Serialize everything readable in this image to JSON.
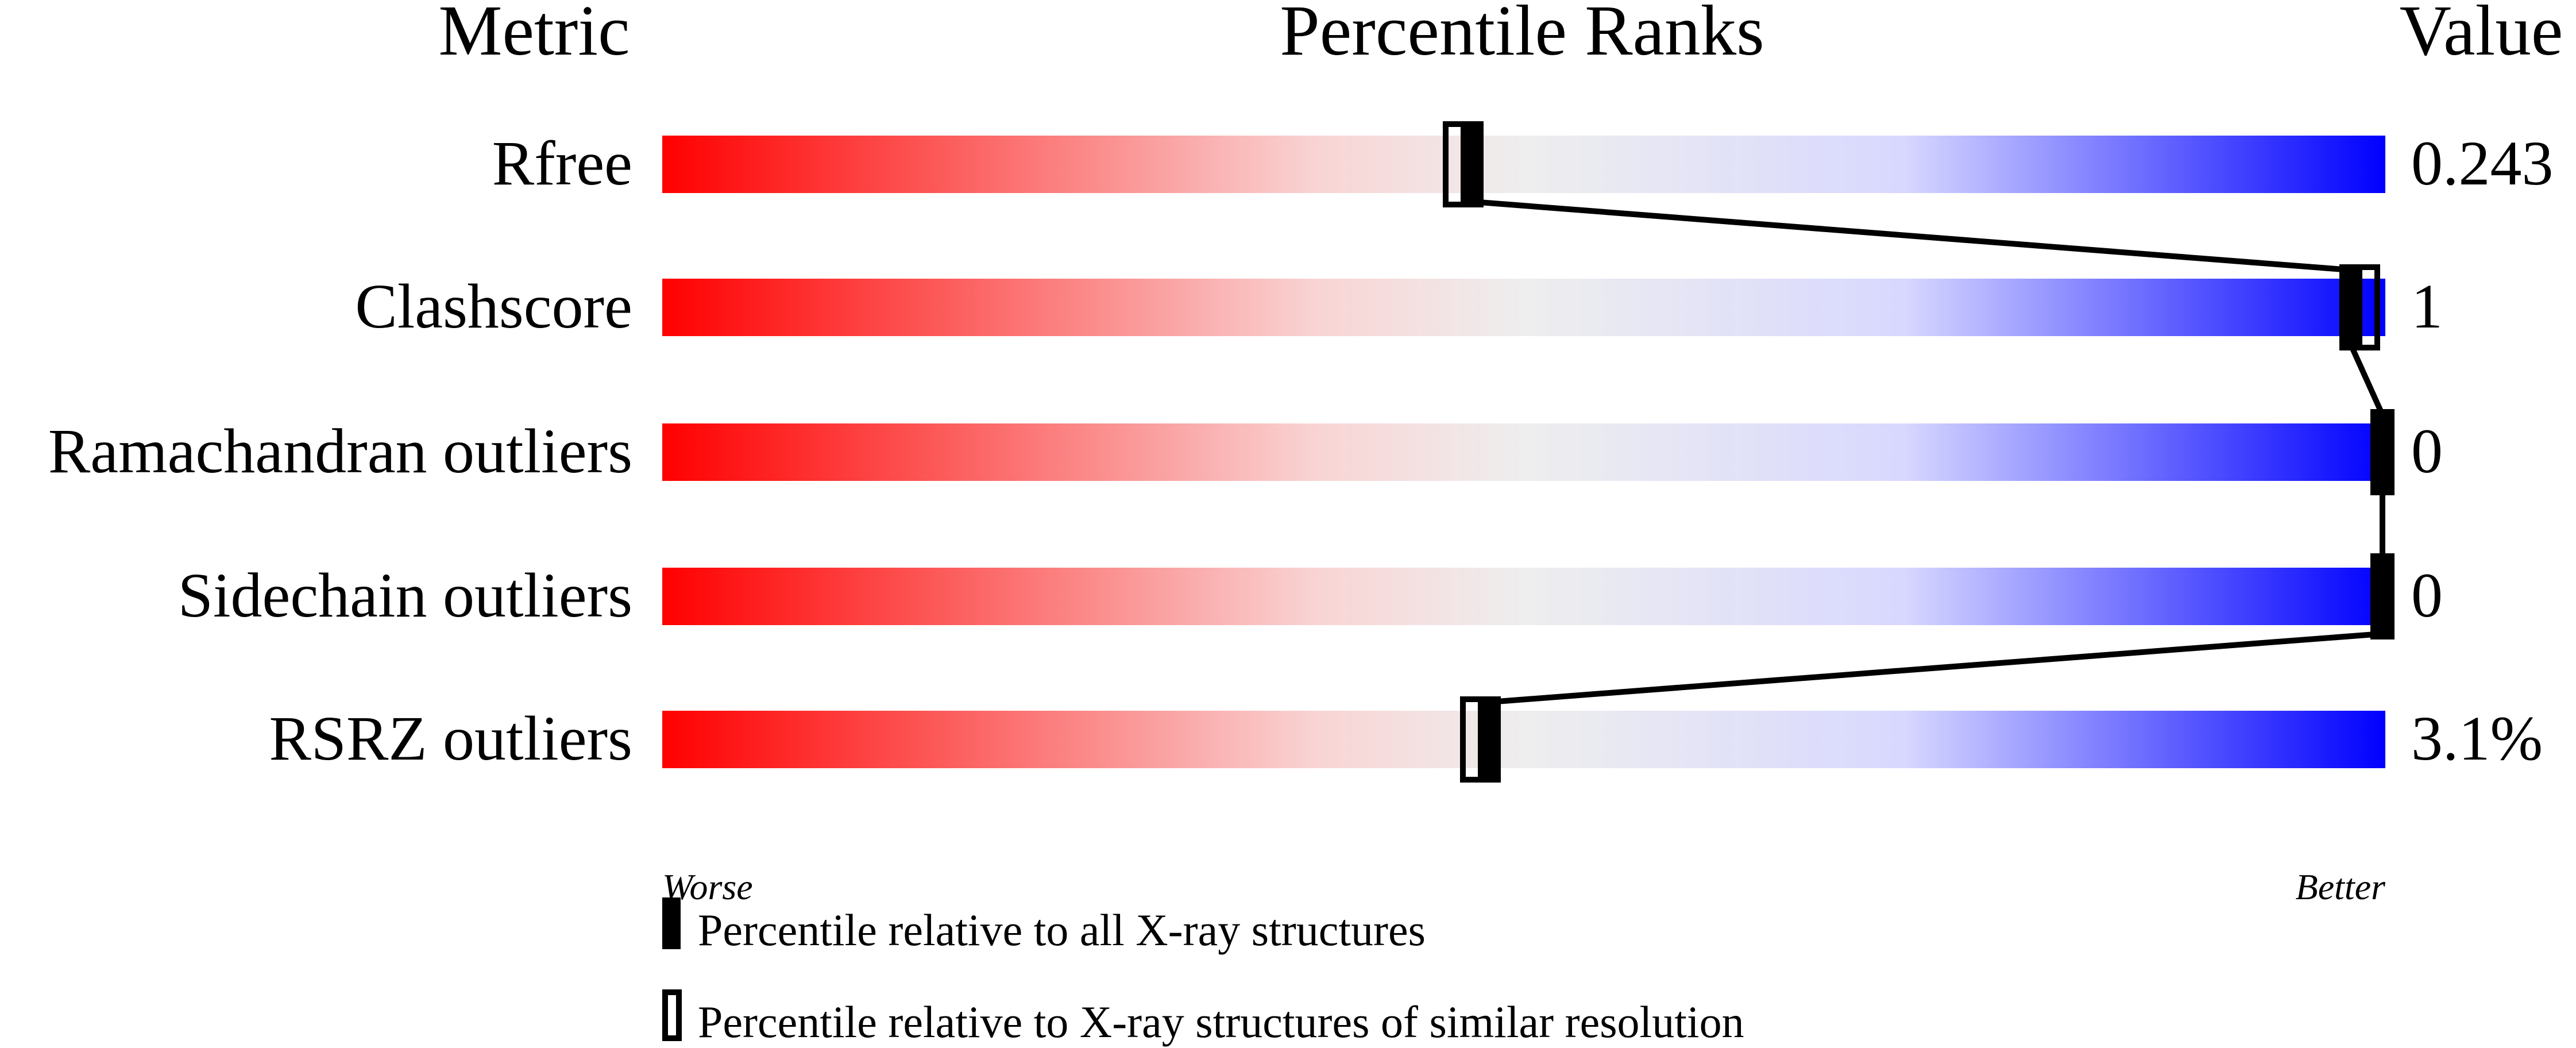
{
  "chart_data": {
    "type": "percentile-bar",
    "headers": {
      "metric": "Metric",
      "ranks": "Percentile Ranks",
      "value": "Value"
    },
    "xlim": [
      0,
      100
    ],
    "axis_labels": {
      "left": "Worse",
      "right": "Better"
    },
    "metrics": [
      {
        "name": "Rfree",
        "value": "0.243",
        "percentile_all": 47,
        "percentile_similar": 46
      },
      {
        "name": "Clashscore",
        "value": "1",
        "percentile_all": 98,
        "percentile_similar": 99
      },
      {
        "name": "Ramachandran outliers",
        "value": "0",
        "percentile_all": 100,
        "percentile_similar": 100
      },
      {
        "name": "Sidechain outliers",
        "value": "0",
        "percentile_all": 100,
        "percentile_similar": 100
      },
      {
        "name": "RSRZ outliers",
        "value": "3.1%",
        "percentile_all": 48,
        "percentile_similar": 47
      }
    ],
    "legend": [
      {
        "marker": "filled",
        "label": "Percentile relative to all X-ray structures"
      },
      {
        "marker": "hollow",
        "label": "Percentile relative to X-ray structures of similar resolution"
      }
    ],
    "gradient_colors": [
      "#ff0000",
      "#f9d4d4",
      "#eeeeee",
      "#d8d8ff",
      "#0000ff"
    ]
  }
}
